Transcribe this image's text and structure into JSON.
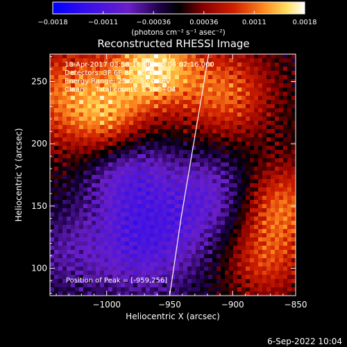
{
  "chart_data": {
    "type": "heatmap",
    "title": "Reconstructed RHESSI Image",
    "xlabel": "Heliocentric X (arcsec)",
    "ylabel": "Heliocentric Y (arcsec)",
    "xlim": [
      -1045,
      -850
    ],
    "ylim": [
      78,
      272
    ],
    "xticks": [
      -1000,
      -950,
      -900,
      -850
    ],
    "xtick_labels": [
      "−1000",
      "−950",
      "−900",
      "−850"
    ],
    "yticks": [
      100,
      150,
      200,
      250
    ],
    "ytick_labels": [
      "100",
      "150",
      "200",
      "250"
    ],
    "colorbar": {
      "range": [
        -0.0018,
        0.0018
      ],
      "tick_labels": [
        "−0.0018",
        "−0.0011",
        "−0.00036",
        "0.00036",
        "0.0011",
        "0.0018"
      ],
      "unit_label": "(photons cm⁻² s⁻¹ asec⁻²)",
      "colormap": [
        "#0000ff",
        "#6a1fc8",
        "#1a0040",
        "#000000",
        "#8a0000",
        "#e04000",
        "#ff9020",
        "#ffffff"
      ]
    },
    "annotations": [
      "18-Apr-2017 03:58:16.000 to 04:02:16.000",
      "Detectors: 3F 6F 8F, Att=0",
      "Energy Range: 25.0 - 50.0 keV",
      "Clean     Total counts: 1.58E+04"
    ],
    "peak_label": "Position of Peak = [-959,256]",
    "peak": [
      -959,
      256
    ],
    "limb_curve": [
      [
        -950,
        78
      ],
      [
        -941,
        140
      ],
      [
        -931,
        200
      ],
      [
        -919,
        272
      ]
    ]
  },
  "footer": {
    "date": "6-Sep-2022 10:04"
  }
}
